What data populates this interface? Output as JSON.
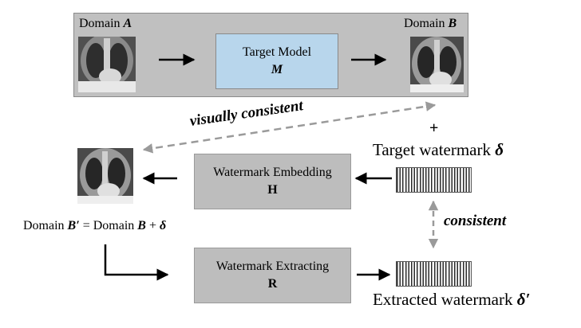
{
  "top": {
    "domain_a_prefix": "Domain ",
    "domain_a_var": "A",
    "domain_b_prefix": "Domain ",
    "domain_b_var": "B",
    "target_model_title": "Target Model",
    "target_model_var": "M"
  },
  "middle": {
    "visually_consistent": "visually consistent",
    "plus": "+",
    "target_watermark_text": "Target watermark ",
    "target_watermark_symbol": "δ"
  },
  "embedding": {
    "title": "Watermark Embedding",
    "var": "H"
  },
  "domain_equation": {
    "part1": "Domain ",
    "b_prime": "B′",
    "part2": " = Domain ",
    "b": "B",
    "part3": " + ",
    "delta": "δ"
  },
  "extraction": {
    "consistent": "consistent",
    "title": "Watermark Extracting",
    "var": "R",
    "extracted_text": "Extracted watermark ",
    "extracted_symbol": "δ′"
  },
  "colors": {
    "panel": "#c0c0c0",
    "target_model_fill": "#b8d6ec",
    "module_fill": "#bdbdbd",
    "dashed_arrow": "#9a9a9a",
    "arrow": "#000000"
  }
}
